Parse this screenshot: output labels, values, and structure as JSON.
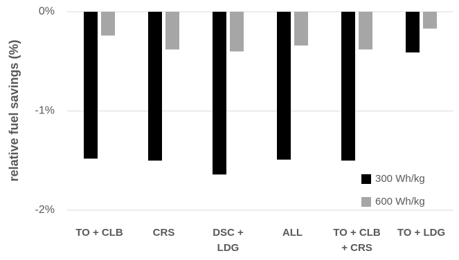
{
  "chart_data": {
    "type": "bar",
    "ylabel": "relative fuel savings (%)",
    "xlabel": "",
    "ylim": [
      -2,
      0
    ],
    "y_ticks": [
      {
        "value": 0,
        "label": "0%"
      },
      {
        "value": -1,
        "label": "-1%"
      },
      {
        "value": -2,
        "label": "-2%"
      }
    ],
    "grid": true,
    "legend_position": "bottom-right",
    "categories": [
      [
        "TO + CLB"
      ],
      [
        "CRS"
      ],
      [
        "DSC +",
        "LDG"
      ],
      [
        "ALL"
      ],
      [
        "TO + CLB",
        "+ CRS"
      ],
      [
        "TO + LDG"
      ]
    ],
    "series": [
      {
        "name": "300 Wh/kg",
        "color": "#000000",
        "values": [
          -1.48,
          -1.5,
          -1.64,
          -1.49,
          -1.5,
          -0.41
        ]
      },
      {
        "name": "600 Wh/kg",
        "color": "#a6a6a6",
        "values": [
          -0.24,
          -0.38,
          -0.4,
          -0.34,
          -0.38,
          -0.17
        ]
      }
    ]
  }
}
